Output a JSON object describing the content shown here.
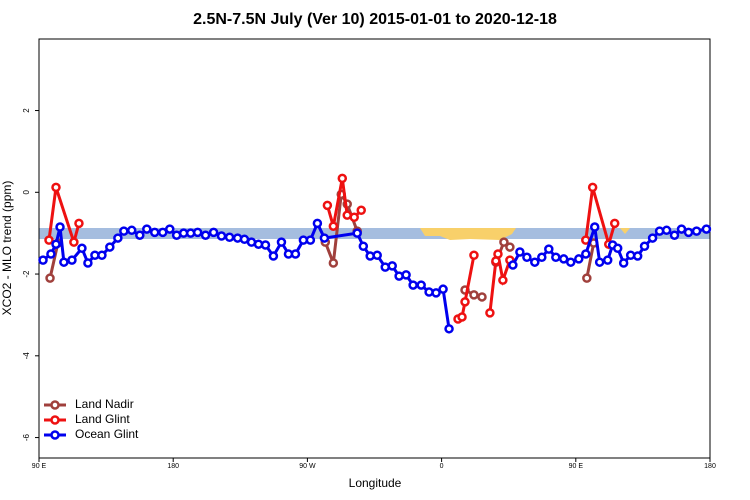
{
  "chart_data": {
    "type": "line",
    "title": "2.5N-7.5N July (Ver 10)   2015-01-01 to 2020-12-18",
    "x_label": "Longitude",
    "y_label": "XCO2 - MLO trend (ppm)",
    "xlim": [
      90,
      540
    ],
    "ylim": [
      -6.5,
      3.75
    ],
    "xticks": [
      {
        "value": 90,
        "label": "90 E"
      },
      180,
      {
        "value": 270,
        "label": "90 W"
      },
      {
        "value": 360,
        "label": "0"
      },
      {
        "value": 450,
        "label": "90 E"
      },
      {
        "value": 540,
        "label": "180"
      }
    ],
    "yticks": [
      -6,
      -4,
      -2,
      0,
      2
    ],
    "legend": "bottom-left",
    "series": [
      {
        "name": "Land Nadir",
        "color": "#a0403c",
        "x": [
          97.4,
          102.7,
          null,
          282.0,
          287.4,
          292.7,
          296.7,
          303.4,
          null,
          375.7,
          381.7,
          387.1,
          null,
          396.4,
          401.8,
          405.8,
          null,
          457.4,
          462.0
        ],
        "values": [
          -2.1,
          -1.24,
          null,
          -1.22,
          -1.73,
          -0.05,
          -0.29,
          -0.95,
          null,
          -2.39,
          -2.51,
          -2.56,
          null,
          -1.71,
          -1.22,
          -1.34,
          null,
          -2.1,
          -1.24
        ]
      },
      {
        "name": "Land Glint",
        "color": "#ee1111",
        "x": [
          96.7,
          101.4,
          113.4,
          116.8,
          null,
          283.4,
          287.4,
          293.4,
          296.7,
          301.4,
          306.1,
          null,
          371.0,
          373.7,
          375.7,
          381.7,
          null,
          392.4,
          396.4,
          397.8,
          401.1,
          405.8,
          null,
          456.7,
          461.3,
          472.1,
          476.1
        ],
        "values": [
          -1.17,
          0.12,
          -1.22,
          -0.76,
          null,
          -0.32,
          -0.83,
          0.34,
          -0.56,
          -0.61,
          -0.44,
          null,
          -3.1,
          -3.05,
          -2.68,
          -1.54,
          null,
          -2.95,
          -1.68,
          -1.51,
          -2.15,
          -1.66,
          null,
          -1.17,
          0.12,
          -1.27,
          -0.76
        ]
      },
      {
        "name": "Ocean Glint",
        "color": "#0000ee",
        "x": [
          92.7,
          98.0,
          101.4,
          104.1,
          106.7,
          112.1,
          118.8,
          122.8,
          127.5,
          132.2,
          137.5,
          142.9,
          146.9,
          152.2,
          157.6,
          162.3,
          167.6,
          173.0,
          177.7,
          182.3,
          187.0,
          191.7,
          196.4,
          201.7,
          207.1,
          212.4,
          217.8,
          223.2,
          227.8,
          232.5,
          237.2,
          241.9,
          247.2,
          252.6,
          257.3,
          262.0,
          267.3,
          272.0,
          276.7,
          281.4,
          303.4,
          307.5,
          312.1,
          316.8,
          322.2,
          326.9,
          331.5,
          336.2,
          340.9,
          346.3,
          351.6,
          356.3,
          361.0,
          365.0,
          null,
          407.8,
          412.5,
          417.2,
          422.5,
          427.2,
          431.9,
          436.6,
          441.9,
          446.6,
          452.0,
          456.7,
          462.7,
          466.0,
          471.4,
          474.7,
          478.1,
          482.1,
          486.8,
          491.5,
          496.1,
          501.5,
          506.2,
          510.9,
          516.2,
          520.9,
          525.6,
          531.0,
          537.6
        ],
        "values": [
          -1.66,
          -1.51,
          -1.27,
          -0.85,
          -1.71,
          -1.66,
          -1.37,
          -1.73,
          -1.54,
          -1.54,
          -1.34,
          -1.12,
          -0.95,
          -0.93,
          -1.05,
          -0.9,
          -0.98,
          -0.98,
          -0.9,
          -1.05,
          -1.0,
          -1.0,
          -0.98,
          -1.05,
          -0.98,
          -1.07,
          -1.1,
          -1.12,
          -1.15,
          -1.22,
          -1.27,
          -1.29,
          -1.56,
          -1.22,
          -1.51,
          -1.51,
          -1.17,
          -1.17,
          -0.76,
          -1.12,
          -1.0,
          -1.32,
          -1.56,
          -1.54,
          -1.83,
          -1.8,
          -2.05,
          -2.02,
          -2.27,
          -2.27,
          -2.44,
          -2.46,
          -2.37,
          -3.34,
          null,
          -1.78,
          -1.46,
          -1.59,
          -1.71,
          -1.59,
          -1.39,
          -1.59,
          -1.63,
          -1.71,
          -1.63,
          -1.51,
          -0.85,
          -1.71,
          -1.66,
          -1.29,
          -1.37,
          -1.73,
          -1.54,
          -1.56,
          -1.32,
          -1.12,
          -0.95,
          -0.93,
          -1.05,
          -0.9,
          -0.98,
          -0.95,
          -0.9
        ]
      }
    ]
  }
}
